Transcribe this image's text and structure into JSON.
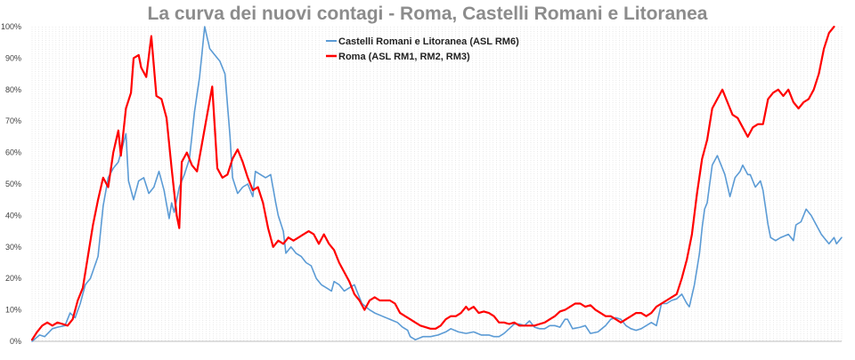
{
  "chart_data": {
    "type": "line",
    "title": "La curva dei nuovi contagi - Roma, Castelli Romani e Litoranea",
    "xlabel": "",
    "ylabel": "",
    "ylim": [
      0,
      100
    ],
    "yticks": [
      "0%",
      "10%",
      "20%",
      "30%",
      "40%",
      "50%",
      "60%",
      "70%",
      "80%",
      "90%",
      "100%"
    ],
    "grid": "vertical dotted",
    "legend_position": "top-center",
    "n_points": 238,
    "series": [
      {
        "name": "Castelli Romani e Litoranea (ASL RM6)",
        "color": "#5b9bd5",
        "anchors": [
          [
            0,
            0
          ],
          [
            3,
            2
          ],
          [
            5,
            1.5
          ],
          [
            8,
            4
          ],
          [
            10,
            4.5
          ],
          [
            13,
            5
          ],
          [
            15,
            9
          ],
          [
            17,
            7.5
          ],
          [
            19,
            12
          ],
          [
            21,
            18
          ],
          [
            23,
            20
          ],
          [
            26,
            27
          ],
          [
            28,
            43
          ],
          [
            30,
            52
          ],
          [
            32,
            55
          ],
          [
            34,
            57
          ],
          [
            36,
            63
          ],
          [
            37,
            66
          ],
          [
            38,
            51
          ],
          [
            40,
            45
          ],
          [
            42,
            51
          ],
          [
            44,
            52
          ],
          [
            46,
            47
          ],
          [
            48,
            49
          ],
          [
            50,
            54
          ],
          [
            52,
            48
          ],
          [
            54,
            39
          ],
          [
            55,
            44
          ],
          [
            56,
            41
          ],
          [
            58,
            49
          ],
          [
            60,
            53
          ],
          [
            62,
            58
          ],
          [
            64,
            73
          ],
          [
            66,
            84
          ],
          [
            68,
            100
          ],
          [
            70,
            93
          ],
          [
            72,
            91
          ],
          [
            74,
            89
          ],
          [
            76,
            85
          ],
          [
            78,
            65
          ],
          [
            79,
            52
          ],
          [
            81,
            47
          ],
          [
            83,
            49
          ],
          [
            85,
            50
          ],
          [
            87,
            46
          ],
          [
            88,
            54
          ],
          [
            90,
            53
          ],
          [
            92,
            52
          ],
          [
            94,
            53
          ],
          [
            96,
            44
          ],
          [
            97,
            40
          ],
          [
            99,
            35
          ],
          [
            100,
            28
          ],
          [
            102,
            30
          ],
          [
            104,
            28
          ],
          [
            106,
            27
          ],
          [
            108,
            25
          ],
          [
            110,
            24
          ],
          [
            112,
            20
          ],
          [
            114,
            18
          ],
          [
            116,
            17
          ],
          [
            118,
            16
          ],
          [
            119,
            19
          ],
          [
            121,
            18
          ],
          [
            123,
            16
          ],
          [
            125,
            17
          ],
          [
            127,
            18
          ],
          [
            128,
            16
          ],
          [
            130,
            12
          ],
          [
            133,
            10
          ],
          [
            135,
            9
          ],
          [
            138,
            8
          ],
          [
            141,
            7
          ],
          [
            144,
            6
          ],
          [
            146,
            4.5
          ],
          [
            148,
            3.5
          ],
          [
            149,
            1.5
          ],
          [
            151,
            0.5
          ],
          [
            154,
            1.5
          ],
          [
            157,
            1.5
          ],
          [
            160,
            2
          ],
          [
            163,
            3
          ],
          [
            165,
            4
          ],
          [
            168,
            3
          ],
          [
            171,
            2.5
          ],
          [
            174,
            3
          ],
          [
            177,
            2
          ],
          [
            180,
            2
          ],
          [
            182,
            1.5
          ],
          [
            184,
            1.5
          ],
          [
            186,
            2.5
          ],
          [
            188,
            4
          ],
          [
            190,
            5.5
          ],
          [
            192,
            5.5
          ],
          [
            194,
            5
          ],
          [
            196,
            6.5
          ],
          [
            198,
            4.5
          ],
          [
            200,
            4
          ],
          [
            202,
            4
          ],
          [
            204,
            5
          ],
          [
            206,
            5
          ],
          [
            208,
            4.5
          ],
          [
            210,
            7
          ],
          [
            211,
            7
          ],
          [
            213,
            4
          ],
          [
            216,
            4.5
          ],
          [
            218,
            5
          ],
          [
            220,
            2.5
          ],
          [
            223,
            3
          ],
          [
            226,
            5
          ],
          [
            228,
            7
          ],
          [
            230,
            7.5
          ],
          [
            232,
            7
          ],
          [
            234,
            5
          ],
          [
            236,
            4
          ],
          [
            238,
            3.5
          ],
          [
            240,
            4
          ],
          [
            242,
            5
          ],
          [
            244,
            6
          ],
          [
            246,
            5
          ],
          [
            248,
            12
          ],
          [
            250,
            12
          ],
          [
            252,
            13
          ],
          [
            254,
            13.5
          ],
          [
            256,
            15
          ],
          [
            258,
            12
          ],
          [
            259,
            11
          ],
          [
            261,
            18
          ],
          [
            263,
            28
          ],
          [
            264,
            36
          ],
          [
            265,
            42
          ],
          [
            266,
            44
          ],
          [
            268,
            56
          ],
          [
            270,
            59
          ],
          [
            272,
            55
          ],
          [
            273,
            53
          ],
          [
            275,
            46
          ],
          [
            277,
            52
          ],
          [
            279,
            54
          ],
          [
            280,
            56
          ],
          [
            282,
            53
          ],
          [
            283,
            53
          ],
          [
            285,
            49
          ],
          [
            287,
            51
          ],
          [
            288,
            48
          ],
          [
            290,
            37
          ],
          [
            291,
            33
          ],
          [
            293,
            32
          ],
          [
            295,
            33
          ],
          [
            298,
            34
          ],
          [
            300,
            32
          ],
          [
            301,
            37
          ],
          [
            303,
            38
          ],
          [
            305,
            42
          ],
          [
            307,
            40
          ],
          [
            309,
            37
          ],
          [
            311,
            34
          ],
          [
            313,
            32
          ],
          [
            314,
            31
          ],
          [
            316,
            33
          ],
          [
            317,
            31
          ],
          [
            319,
            33
          ]
        ]
      },
      {
        "name": "Roma (ASL RM1, RM2, RM3)",
        "color": "#ff0000",
        "anchors": [
          [
            0,
            0.5
          ],
          [
            2,
            3
          ],
          [
            4,
            5
          ],
          [
            6,
            6
          ],
          [
            8,
            5
          ],
          [
            10,
            6
          ],
          [
            12,
            5.5
          ],
          [
            14,
            5
          ],
          [
            16,
            7
          ],
          [
            18,
            13
          ],
          [
            20,
            17
          ],
          [
            22,
            27
          ],
          [
            24,
            37
          ],
          [
            26,
            45
          ],
          [
            28,
            52
          ],
          [
            30,
            49
          ],
          [
            32,
            60
          ],
          [
            34,
            67
          ],
          [
            35,
            59
          ],
          [
            37,
            74
          ],
          [
            39,
            79
          ],
          [
            40,
            90
          ],
          [
            42,
            91
          ],
          [
            43,
            87
          ],
          [
            45,
            84
          ],
          [
            47,
            97
          ],
          [
            49,
            78
          ],
          [
            51,
            77
          ],
          [
            53,
            71
          ],
          [
            55,
            55
          ],
          [
            57,
            40
          ],
          [
            58,
            36
          ],
          [
            59,
            57
          ],
          [
            61,
            60
          ],
          [
            63,
            56
          ],
          [
            65,
            54
          ],
          [
            67,
            63
          ],
          [
            69,
            72
          ],
          [
            71,
            81
          ],
          [
            73,
            55
          ],
          [
            75,
            52
          ],
          [
            77,
            53
          ],
          [
            79,
            58
          ],
          [
            81,
            61
          ],
          [
            83,
            57
          ],
          [
            85,
            52
          ],
          [
            87,
            48
          ],
          [
            89,
            49
          ],
          [
            91,
            44
          ],
          [
            93,
            36
          ],
          [
            95,
            30
          ],
          [
            97,
            32
          ],
          [
            99,
            31
          ],
          [
            101,
            33
          ],
          [
            103,
            32
          ],
          [
            105,
            33
          ],
          [
            107,
            34
          ],
          [
            109,
            35
          ],
          [
            111,
            34
          ],
          [
            113,
            31
          ],
          [
            115,
            34
          ],
          [
            117,
            31
          ],
          [
            119,
            29
          ],
          [
            121,
            25
          ],
          [
            123,
            22
          ],
          [
            125,
            19
          ],
          [
            127,
            15
          ],
          [
            129,
            13
          ],
          [
            131,
            10
          ],
          [
            133,
            13
          ],
          [
            135,
            14
          ],
          [
            137,
            13
          ],
          [
            139,
            13
          ],
          [
            141,
            13
          ],
          [
            143,
            12
          ],
          [
            145,
            9
          ],
          [
            147,
            8
          ],
          [
            149,
            7
          ],
          [
            151,
            6
          ],
          [
            153,
            5
          ],
          [
            155,
            4.5
          ],
          [
            157,
            4
          ],
          [
            159,
            4
          ],
          [
            161,
            5
          ],
          [
            163,
            7
          ],
          [
            165,
            8
          ],
          [
            167,
            8
          ],
          [
            169,
            9
          ],
          [
            171,
            11
          ],
          [
            172,
            10
          ],
          [
            174,
            11
          ],
          [
            176,
            9
          ],
          [
            178,
            9.5
          ],
          [
            180,
            9
          ],
          [
            182,
            8
          ],
          [
            184,
            6
          ],
          [
            186,
            6
          ],
          [
            188,
            5.5
          ],
          [
            190,
            6
          ],
          [
            192,
            5
          ],
          [
            194,
            5
          ],
          [
            196,
            5
          ],
          [
            198,
            5
          ],
          [
            200,
            5.5
          ],
          [
            202,
            6
          ],
          [
            204,
            7
          ],
          [
            206,
            8
          ],
          [
            208,
            9.5
          ],
          [
            210,
            10
          ],
          [
            212,
            11
          ],
          [
            214,
            12
          ],
          [
            216,
            12
          ],
          [
            218,
            11
          ],
          [
            220,
            11.5
          ],
          [
            222,
            10
          ],
          [
            224,
            9
          ],
          [
            226,
            8
          ],
          [
            228,
            8
          ],
          [
            230,
            7
          ],
          [
            232,
            6
          ],
          [
            234,
            7
          ],
          [
            236,
            8
          ],
          [
            238,
            9
          ],
          [
            240,
            9
          ],
          [
            242,
            8
          ],
          [
            244,
            9
          ],
          [
            246,
            11
          ],
          [
            248,
            12
          ],
          [
            250,
            13
          ],
          [
            252,
            14
          ],
          [
            254,
            15
          ],
          [
            256,
            20
          ],
          [
            258,
            26
          ],
          [
            260,
            34
          ],
          [
            262,
            47
          ],
          [
            264,
            58
          ],
          [
            266,
            64
          ],
          [
            268,
            74
          ],
          [
            270,
            77
          ],
          [
            272,
            80
          ],
          [
            274,
            76
          ],
          [
            276,
            72
          ],
          [
            278,
            71
          ],
          [
            280,
            68
          ],
          [
            282,
            65
          ],
          [
            284,
            68
          ],
          [
            286,
            69
          ],
          [
            288,
            69
          ],
          [
            290,
            77
          ],
          [
            292,
            79
          ],
          [
            294,
            80
          ],
          [
            296,
            78
          ],
          [
            298,
            80
          ],
          [
            300,
            76
          ],
          [
            302,
            74
          ],
          [
            304,
            76
          ],
          [
            306,
            77
          ],
          [
            308,
            80
          ],
          [
            310,
            85
          ],
          [
            312,
            93
          ],
          [
            314,
            98
          ],
          [
            316,
            100
          ]
        ]
      }
    ]
  }
}
